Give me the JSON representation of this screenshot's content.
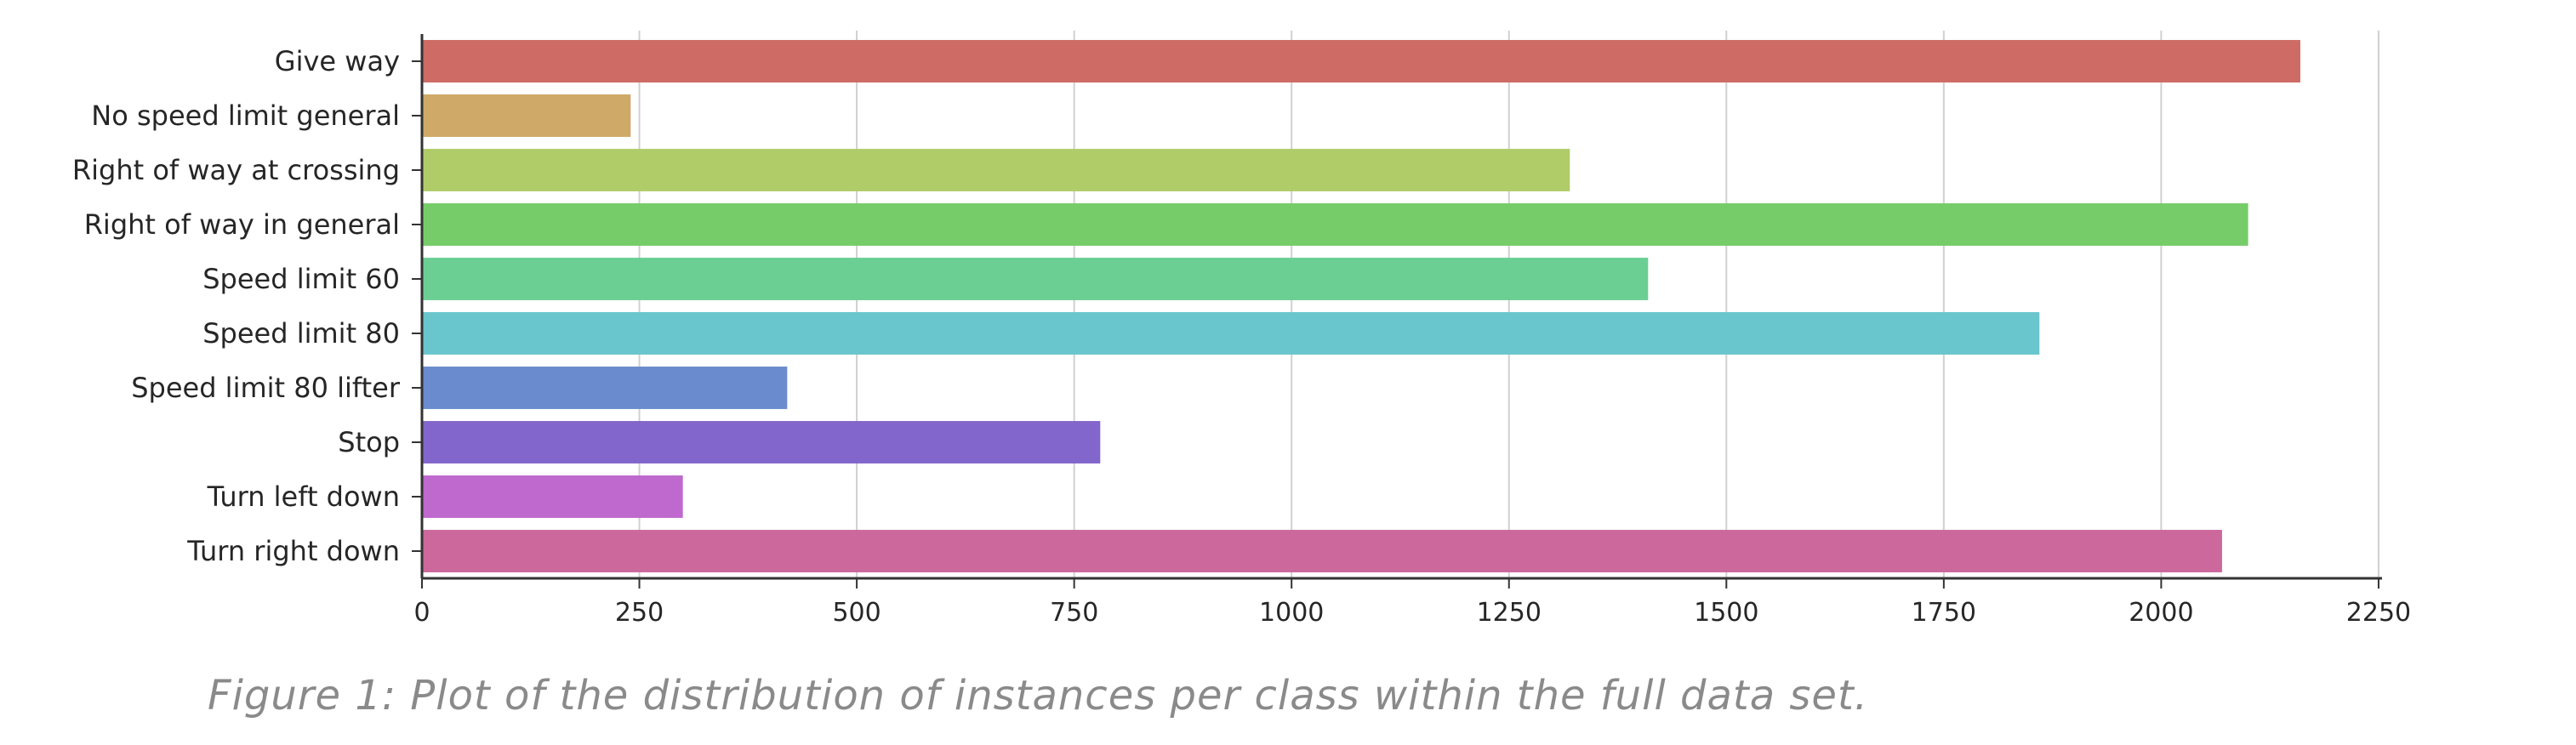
{
  "chart_data": {
    "type": "bar",
    "orientation": "horizontal",
    "categories": [
      "Give way",
      "No speed limit general",
      "Right of way at crossing",
      "Right of way in general",
      "Speed limit 60",
      "Speed limit 80",
      "Speed limit 80 lifter",
      "Stop",
      "Turn left down",
      "Turn right down"
    ],
    "values": [
      2160,
      240,
      1320,
      2100,
      1410,
      1860,
      420,
      780,
      300,
      2070
    ],
    "colors": [
      "#cd6b64",
      "#cfa967",
      "#b0cc69",
      "#76cc69",
      "#6bcf94",
      "#69c6cc",
      "#6a8bcd",
      "#8366cc",
      "#bf68cd",
      "#cd689d"
    ],
    "xticks": [
      "0",
      "250",
      "500",
      "750",
      "1000",
      "1250",
      "1500",
      "1750",
      "2000",
      "2250"
    ],
    "xlim": [
      0,
      2250
    ],
    "grid": "vertical",
    "title": "",
    "xlabel": "",
    "ylabel": ""
  },
  "caption": "Figure 1: Plot of the distribution of instances per class within the full data set."
}
